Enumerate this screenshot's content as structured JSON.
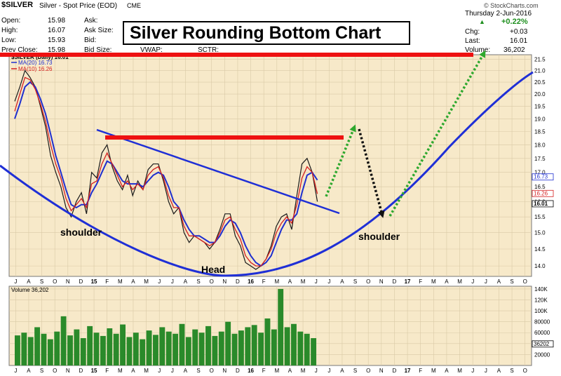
{
  "header": {
    "symbol": "$SILVER",
    "description": "Silver - Spot Price (EOD)",
    "exchange": "CME",
    "site": "© StockCharts.com",
    "date": "Thursday 2-Jun-2016",
    "open_label": "Open:",
    "open": "15.98",
    "high_label": "High:",
    "high": "16.07",
    "low_label": "Low:",
    "low": "15.93",
    "prev_label": "Prev Close:",
    "prev": "15.98",
    "ask_label": "Ask:",
    "asksize_label": "Ask Size:",
    "bid_label": "Bid:",
    "bidsize_label": "Bid Size:",
    "vwap_label": "VWAP:",
    "sctr_label": "SCTR:",
    "change_pct": "+0.22%",
    "chg_label": "Chg:",
    "chg": "+0.03",
    "last_label": "Last:",
    "last": "16.01",
    "volume_label": "Volume:",
    "volume": "36,202"
  },
  "annotation_title": "Silver Rounding Bottom Chart",
  "colors": {
    "panel": "#f7e9c9",
    "price": "#1a1a1a",
    "ma20": "#1f2fcf",
    "ma10": "#d41f1f",
    "annot_blue": "#1f2fd6",
    "resistance": "#ee1111",
    "green_arrow": "#2ea82e",
    "volume_bar": "#2a8a2a"
  },
  "chart_data": [
    {
      "type": "line",
      "title": "Silver Rounding Bottom Chart",
      "x_axis_labels": [
        "J",
        "A",
        "S",
        "O",
        "N",
        "D",
        "15",
        "F",
        "M",
        "A",
        "M",
        "J",
        "J",
        "A",
        "S",
        "O",
        "N",
        "D",
        "16",
        "F",
        "M",
        "A",
        "M",
        "J",
        "J",
        "A",
        "S",
        "O",
        "N",
        "D",
        "17",
        "F",
        "M",
        "A",
        "M",
        "J",
        "J",
        "A",
        "S",
        "O"
      ],
      "y_tick_labels": [
        "14.0",
        "14.5",
        "15.0",
        "15.5",
        "16.0",
        "16.5",
        "17.0",
        "17.5",
        "18.0",
        "18.5",
        "19.0",
        "19.5",
        "20.0",
        "20.5",
        "21.0",
        "21.5"
      ],
      "ylim": [
        13.7,
        21.7
      ],
      "y_scale": "log",
      "grid": true,
      "legend": {
        "title": "$SILVER (Daily) 16.01",
        "placement": "top-left",
        "entries": [
          {
            "name": "MA(20) 16.73",
            "color": "#1f2fcf"
          },
          {
            "name": "MA(10) 16.26",
            "color": "#d41f1f"
          }
        ]
      },
      "right_labels": [
        {
          "text": "16.73",
          "value": 16.73
        },
        {
          "text": "16.26",
          "value": 16.26
        },
        {
          "text": "16.01",
          "value": 16.01
        }
      ],
      "series": [
        {
          "name": "$SILVER",
          "values": [
            19.7,
            20.3,
            21.0,
            20.7,
            20.3,
            19.5,
            18.7,
            17.6,
            17.0,
            16.5,
            15.8,
            15.5,
            16.0,
            16.3,
            15.6,
            17.0,
            16.8,
            17.7,
            18.0,
            17.2,
            16.7,
            16.4,
            16.9,
            16.2,
            16.7,
            16.4,
            17.1,
            17.3,
            17.3,
            16.7,
            16.0,
            15.6,
            15.8,
            15.0,
            14.7,
            14.9,
            14.8,
            14.7,
            14.5,
            14.7,
            15.1,
            15.6,
            15.6,
            14.9,
            14.6,
            14.1,
            14.0,
            13.9,
            14.0,
            14.2,
            14.6,
            15.2,
            15.5,
            15.6,
            15.1,
            16.2,
            17.3,
            17.5,
            17.0,
            16.0
          ]
        },
        {
          "name": "MA(20) 16.73",
          "values": [
            19.0,
            19.6,
            20.3,
            20.5,
            20.3,
            19.8,
            19.2,
            18.4,
            17.6,
            17.0,
            16.4,
            15.9,
            15.8,
            15.9,
            15.9,
            16.3,
            16.6,
            17.0,
            17.4,
            17.3,
            17.0,
            16.7,
            16.6,
            16.6,
            16.6,
            16.5,
            16.7,
            16.9,
            17.0,
            16.9,
            16.5,
            16.0,
            15.8,
            15.4,
            15.1,
            14.9,
            14.9,
            14.8,
            14.7,
            14.7,
            14.9,
            15.2,
            15.4,
            15.3,
            15.0,
            14.6,
            14.3,
            14.1,
            14.0,
            14.1,
            14.3,
            14.7,
            15.1,
            15.4,
            15.4,
            15.6,
            16.3,
            16.9,
            17.0,
            16.73
          ]
        },
        {
          "name": "MA(10) 16.26",
          "values": [
            19.3,
            20.0,
            20.7,
            20.6,
            20.2,
            19.6,
            18.9,
            18.0,
            17.3,
            16.8,
            16.1,
            15.7,
            15.9,
            16.1,
            15.8,
            16.6,
            16.7,
            17.3,
            17.7,
            17.3,
            16.9,
            16.5,
            16.7,
            16.4,
            16.6,
            16.4,
            16.9,
            17.1,
            17.2,
            16.8,
            16.2,
            15.8,
            15.8,
            15.2,
            14.9,
            14.9,
            14.8,
            14.7,
            14.6,
            14.7,
            15.0,
            15.4,
            15.5,
            15.1,
            14.8,
            14.3,
            14.1,
            14.0,
            14.0,
            14.2,
            14.5,
            15.0,
            15.3,
            15.5,
            15.3,
            15.9,
            16.8,
            17.2,
            17.0,
            16.26
          ]
        }
      ],
      "annotations": [
        "shoulder",
        "Head",
        "shoulder"
      ]
    },
    {
      "type": "bar",
      "title": "Volume 36,202",
      "y_tick_labels": [
        "20000",
        "40000",
        "60000",
        "80000",
        "100K",
        "120K",
        "140K"
      ],
      "ylim": [
        0,
        145000
      ],
      "right_labels": [
        {
          "text": "36202",
          "value": 36202
        }
      ],
      "x_axis_labels": [
        "J",
        "A",
        "S",
        "O",
        "N",
        "D",
        "15",
        "F",
        "M",
        "A",
        "M",
        "J",
        "J",
        "A",
        "S",
        "O",
        "N",
        "D",
        "16",
        "F",
        "M",
        "A",
        "M",
        "J",
        "J",
        "A",
        "S",
        "O",
        "N",
        "D",
        "17",
        "F",
        "M",
        "A",
        "M",
        "J",
        "J",
        "A",
        "S",
        "O"
      ],
      "values": [
        55000,
        60000,
        52000,
        70000,
        58000,
        48000,
        62000,
        90000,
        55000,
        66000,
        50000,
        72000,
        60000,
        54000,
        68000,
        58000,
        75000,
        52000,
        60000,
        48000,
        64000,
        56000,
        70000,
        62000,
        58000,
        76000,
        52000,
        66000,
        60000,
        72000,
        54000,
        62000,
        80000,
        58000,
        64000,
        70000,
        74000,
        60000,
        86000,
        66000,
        140000,
        70000,
        76000,
        62000,
        58000,
        50000
      ]
    }
  ]
}
